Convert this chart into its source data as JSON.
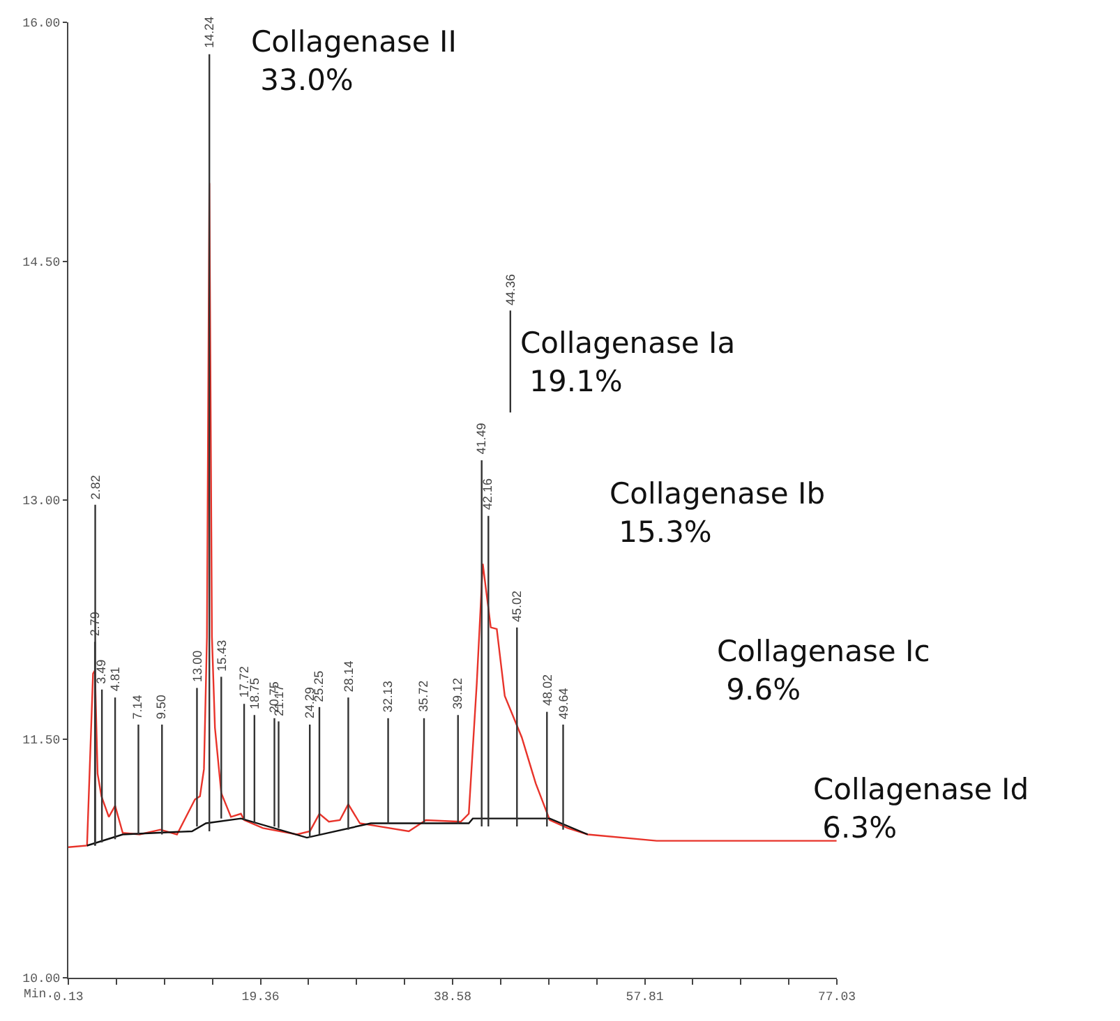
{
  "chart_data": {
    "type": "line",
    "xlim": [
      0.13,
      77.03
    ],
    "xticks": [
      0.13,
      {
        "value": 4.937,
        "label": null
      },
      {
        "value": 9.745,
        "label": null
      },
      {
        "value": 14.552,
        "label": null
      },
      19.36,
      {
        "value": 24.165,
        "label": null
      },
      {
        "value": 28.97,
        "label": null
      },
      {
        "value": 33.775,
        "label": null
      },
      38.58,
      {
        "value": 43.388,
        "label": null
      },
      {
        "value": 48.195,
        "label": null
      },
      {
        "value": 53.003,
        "label": null
      },
      57.81,
      {
        "value": 62.615,
        "label": null
      },
      {
        "value": 67.42,
        "label": null
      },
      {
        "value": 72.225,
        "label": null
      },
      77.03
    ],
    "ylim": [
      10,
      16
    ],
    "yticks": [
      {
        "value": 10,
        "label": "10.00"
      },
      {
        "value": 11.5,
        "label": "11.50"
      },
      {
        "value": 13,
        "label": "13.00"
      },
      {
        "value": 14.5,
        "label": "14.50"
      },
      {
        "value": 16,
        "label": "16.00"
      }
    ],
    "xlabel": "Min.",
    "series": [
      {
        "color": "#e8332a",
        "x": [
          0.13,
          2.0,
          2.6,
          2.79,
          3.06,
          3.44,
          4.18,
          4.81,
          5.57,
          7.25,
          9.34,
          11.0,
          12.8,
          13.3,
          13.7,
          14.0,
          14.24,
          14.5,
          14.8,
          15.43,
          16.4,
          17.4,
          17.72,
          19.6,
          23.0,
          24.3,
          25.25,
          26.2,
          27.3,
          28.14,
          29.3,
          31.3,
          34.2,
          35.9,
          39.4,
          40.2,
          41.0,
          41.6,
          42.4,
          43.0,
          43.8,
          45.5,
          46.9,
          48.3,
          50.1,
          52.1,
          59.0,
          77.0
        ],
        "values": [
          10.82,
          10.83,
          11.91,
          11.93,
          11.28,
          11.14,
          11.01,
          11.08,
          10.91,
          10.9,
          10.93,
          10.9,
          11.12,
          11.14,
          11.31,
          12.14,
          14.99,
          12.14,
          11.57,
          11.16,
          11.01,
          11.03,
          10.99,
          10.94,
          10.9,
          10.92,
          11.03,
          10.98,
          10.99,
          11.09,
          10.97,
          10.95,
          10.92,
          10.99,
          10.98,
          11.03,
          11.85,
          12.6,
          12.2,
          12.19,
          11.77,
          11.51,
          11.22,
          10.99,
          10.94,
          10.9,
          10.86,
          10.86
        ]
      },
      {
        "color": "#111111",
        "x": [
          2.0,
          5.57,
          12.5,
          13.9,
          17.4,
          24.0,
          30.4,
          40.2,
          40.6,
          48.3,
          52.1
        ],
        "values": [
          10.83,
          10.9,
          10.92,
          10.97,
          11.0,
          10.88,
          10.97,
          10.97,
          11.0,
          11.0,
          10.9
        ]
      },
      {
        "color": "#333333",
        "x": [
          2.79,
          2.79
        ],
        "values": [
          10.83,
          12.11
        ]
      },
      {
        "color": "#333333",
        "x": [
          2.82,
          2.82
        ],
        "values": [
          10.83,
          12.97
        ]
      },
      {
        "color": "#333333",
        "x": [
          3.49,
          3.49
        ],
        "values": [
          10.85,
          11.81
        ]
      },
      {
        "color": "#333333",
        "x": [
          4.81,
          4.81
        ],
        "values": [
          10.87,
          11.76
        ]
      },
      {
        "color": "#333333",
        "x": [
          7.14,
          7.14
        ],
        "values": [
          10.9,
          11.59
        ]
      },
      {
        "color": "#333333",
        "x": [
          9.5,
          9.5
        ],
        "values": [
          10.9,
          11.59
        ]
      },
      {
        "color": "#333333",
        "x": [
          13.0,
          13.0
        ],
        "values": [
          10.95,
          11.82
        ]
      },
      {
        "color": "#333333",
        "x": [
          14.24,
          14.24
        ],
        "values": [
          10.92,
          15.8
        ]
      },
      {
        "color": "#333333",
        "x": [
          15.43,
          15.43
        ],
        "values": [
          11.0,
          11.89
        ]
      },
      {
        "color": "#333333",
        "x": [
          17.72,
          17.72
        ],
        "values": [
          10.99,
          11.72
        ]
      },
      {
        "color": "#333333",
        "x": [
          18.75,
          18.75
        ],
        "values": [
          10.97,
          11.65
        ]
      },
      {
        "color": "#333333",
        "x": [
          20.75,
          20.75
        ],
        "values": [
          10.95,
          11.63
        ]
      },
      {
        "color": "#333333",
        "x": [
          21.17,
          21.17
        ],
        "values": [
          10.94,
          11.61
        ]
      },
      {
        "color": "#333333",
        "x": [
          24.29,
          24.29
        ],
        "values": [
          10.88,
          11.59
        ]
      },
      {
        "color": "#333333",
        "x": [
          25.25,
          25.25
        ],
        "values": [
          10.9,
          11.7
        ]
      },
      {
        "color": "#333333",
        "x": [
          28.14,
          28.14
        ],
        "values": [
          10.93,
          11.76
        ]
      },
      {
        "color": "#333333",
        "x": [
          32.13,
          32.13
        ],
        "values": [
          10.97,
          11.63
        ]
      },
      {
        "color": "#333333",
        "x": [
          35.72,
          35.72
        ],
        "values": [
          10.97,
          11.63
        ]
      },
      {
        "color": "#333333",
        "x": [
          39.12,
          39.12
        ],
        "values": [
          10.97,
          11.65
        ]
      },
      {
        "color": "#333333",
        "x": [
          41.49,
          41.49
        ],
        "values": [
          10.95,
          13.25
        ]
      },
      {
        "color": "#333333",
        "x": [
          42.16,
          42.16
        ],
        "values": [
          10.95,
          12.9
        ]
      },
      {
        "color": "#333333",
        "x": [
          44.36,
          44.36
        ],
        "values": [
          13.55,
          14.19
        ]
      },
      {
        "color": "#333333",
        "x": [
          45.02,
          45.02
        ],
        "values": [
          10.95,
          12.2
        ]
      },
      {
        "color": "#333333",
        "x": [
          48.02,
          48.02
        ],
        "values": [
          10.95,
          11.67
        ]
      },
      {
        "color": "#333333",
        "x": [
          49.64,
          49.64
        ],
        "values": [
          10.93,
          11.59
        ]
      }
    ],
    "annotations": [
      {
        "text": "2.79",
        "x": 2.79,
        "y": 12.11
      },
      {
        "text": "2.82",
        "x": 2.82,
        "y": 12.97
      },
      {
        "text": "3.49",
        "x": 3.49,
        "y": 11.81
      },
      {
        "text": "4.81",
        "x": 4.81,
        "y": 11.76
      },
      {
        "text": "7.14",
        "x": 7.14,
        "y": 11.59
      },
      {
        "text": "9.50",
        "x": 9.5,
        "y": 11.59
      },
      {
        "text": "13.00",
        "x": 13.0,
        "y": 11.82
      },
      {
        "text": "14.24",
        "x": 14.24,
        "y": 15.8
      },
      {
        "text": "15.43",
        "x": 15.43,
        "y": 11.89
      },
      {
        "text": "17.72",
        "x": 17.72,
        "y": 11.72
      },
      {
        "text": "18.75",
        "x": 18.75,
        "y": 11.65
      },
      {
        "text": "20.75",
        "x": 20.75,
        "y": 11.63
      },
      {
        "text": "21.17",
        "x": 21.17,
        "y": 11.61
      },
      {
        "text": "24.29",
        "x": 24.29,
        "y": 11.59
      },
      {
        "text": "25.25",
        "x": 25.25,
        "y": 11.7
      },
      {
        "text": "28.14",
        "x": 28.14,
        "y": 11.76
      },
      {
        "text": "32.13",
        "x": 32.13,
        "y": 11.63
      },
      {
        "text": "35.72",
        "x": 35.72,
        "y": 11.63
      },
      {
        "text": "39.12",
        "x": 39.12,
        "y": 11.65
      },
      {
        "text": "41.49",
        "x": 41.49,
        "y": 13.25
      },
      {
        "text": "42.16",
        "x": 42.16,
        "y": 12.9
      },
      {
        "text": "44.36",
        "x": 44.36,
        "y": 14.19
      },
      {
        "text": "45.02",
        "x": 45.02,
        "y": 12.2
      },
      {
        "text": "48.02",
        "x": 48.02,
        "y": 11.67
      },
      {
        "text": "49.64",
        "x": 49.64,
        "y": 11.59
      },
      "Collagenase II\n 33.0%",
      "Collagenase Ia\n 19.1%",
      "Collagenase Ib\n 15.3%",
      "Collagenase Ic\n 9.6%",
      "Collagenase Id\n 6.3%"
    ]
  }
}
